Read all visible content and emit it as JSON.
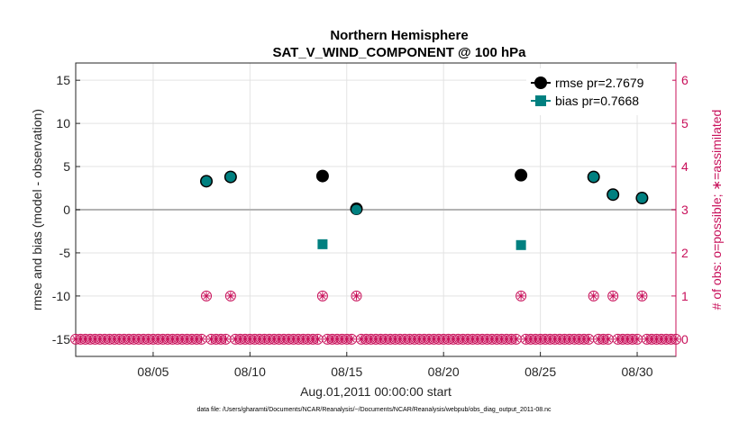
{
  "chart_data": {
    "type": "scatter",
    "title": "Northern Hemisphere",
    "subtitle": "SAT_V_WIND_COMPONENT @ 100 hPa",
    "xlabel": "Aug.01,2011 00:00:00 start",
    "ylabel": "rmse and bias (model - observation)",
    "y2label": "# of obs: o=possible; ∗=assimilated",
    "footnote": "data file: /Users/gharamti/Documents/NCAR/Reanalysis/~/Documents/NCAR/Reanalysis/webpub/obs_diag_output_2011-08.nc",
    "xlim": [
      1,
      32
    ],
    "ylim": [
      -17,
      17
    ],
    "y2lim": [
      -0.4,
      6.4
    ],
    "xticks": [
      5,
      10,
      15,
      20,
      25,
      30
    ],
    "xtick_labels": [
      "08/05",
      "08/10",
      "08/15",
      "08/20",
      "08/25",
      "08/30"
    ],
    "yticks": [
      -15,
      -10,
      -5,
      0,
      5,
      10,
      15
    ],
    "y2ticks": [
      0,
      1,
      2,
      3,
      4,
      5,
      6
    ],
    "grid": true,
    "legend_position": "top-right",
    "colors": {
      "rmse": "#000000",
      "bias": "#008080",
      "obs": "#c8105a",
      "zero_line": "#b3b3b3"
    },
    "series": [
      {
        "name": "rmse pr=2.7679",
        "axis": "left",
        "marker": "circle",
        "x": [
          7.75,
          9.0,
          13.75,
          15.5,
          24.0,
          27.75,
          28.75,
          30.25
        ],
        "y": [
          3.3,
          3.8,
          3.9,
          0.1,
          4.0,
          3.8,
          1.75,
          1.35
        ]
      },
      {
        "name": "bias pr=0.7668",
        "axis": "left",
        "marker": "square",
        "x": [
          7.75,
          9.0,
          13.75,
          15.5,
          24.0,
          27.75,
          28.75,
          30.25
        ],
        "y": [
          3.3,
          3.8,
          -4.0,
          0.0,
          -4.1,
          3.8,
          1.75,
          1.35
        ]
      },
      {
        "name": "obs possible",
        "axis": "right",
        "marker": "o",
        "start": 1.0,
        "end": 32.0,
        "step": 0.25,
        "nonzero_x": [
          7.75,
          9.0,
          13.75,
          15.5,
          24.0,
          27.75,
          28.75,
          30.25
        ],
        "nonzero_y": 1
      },
      {
        "name": "obs assimilated",
        "axis": "right",
        "marker": "*",
        "start": 1.0,
        "end": 32.0,
        "step": 0.25,
        "nonzero_x": [
          7.75,
          9.0,
          13.75,
          15.5,
          24.0,
          27.75,
          28.75,
          30.25
        ],
        "nonzero_y": 1
      }
    ]
  }
}
